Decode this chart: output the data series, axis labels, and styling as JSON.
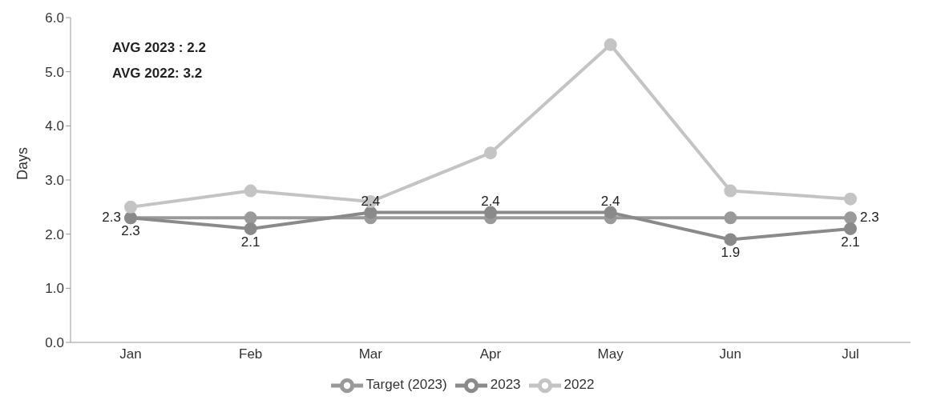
{
  "chart_data": {
    "type": "line",
    "ylabel": "Days",
    "categories": [
      "Jan",
      "Feb",
      "Mar",
      "Apr",
      "May",
      "Jun",
      "Jul"
    ],
    "series": [
      {
        "name": "Target (2023)",
        "color": "#9a9a9a",
        "values": [
          2.3,
          2.3,
          2.3,
          2.3,
          2.3,
          2.3,
          2.3
        ],
        "value_labels": [
          "2.3",
          null,
          null,
          null,
          null,
          null,
          "2.3"
        ]
      },
      {
        "name": "2023",
        "color": "#8a8a8a",
        "values": [
          2.3,
          2.1,
          2.4,
          2.4,
          2.4,
          1.9,
          2.1
        ],
        "value_labels": [
          "2.3",
          "2.1",
          "2.4",
          "2.4",
          "2.4",
          "1.9",
          "2.1"
        ]
      },
      {
        "name": "2022",
        "color": "#c4c4c4",
        "values": [
          2.5,
          2.8,
          2.6,
          3.5,
          5.5,
          2.8,
          2.65
        ]
      }
    ],
    "ylim": [
      0,
      6
    ],
    "yticks": [
      {
        "value": 0,
        "label": "0.0"
      },
      {
        "value": 1,
        "label": "1.0"
      },
      {
        "value": 2,
        "label": "2.0"
      },
      {
        "value": 3,
        "label": "3.0"
      },
      {
        "value": 4,
        "label": "4.0"
      },
      {
        "value": 5,
        "label": "5.0"
      },
      {
        "value": 6,
        "label": "6.0"
      }
    ],
    "grid": false,
    "legend": "bottom",
    "marker": "circle",
    "line_style": "solid",
    "annotations": [
      "AVG 2023 : 2.2",
      "AVG 2022: 3.2"
    ]
  }
}
